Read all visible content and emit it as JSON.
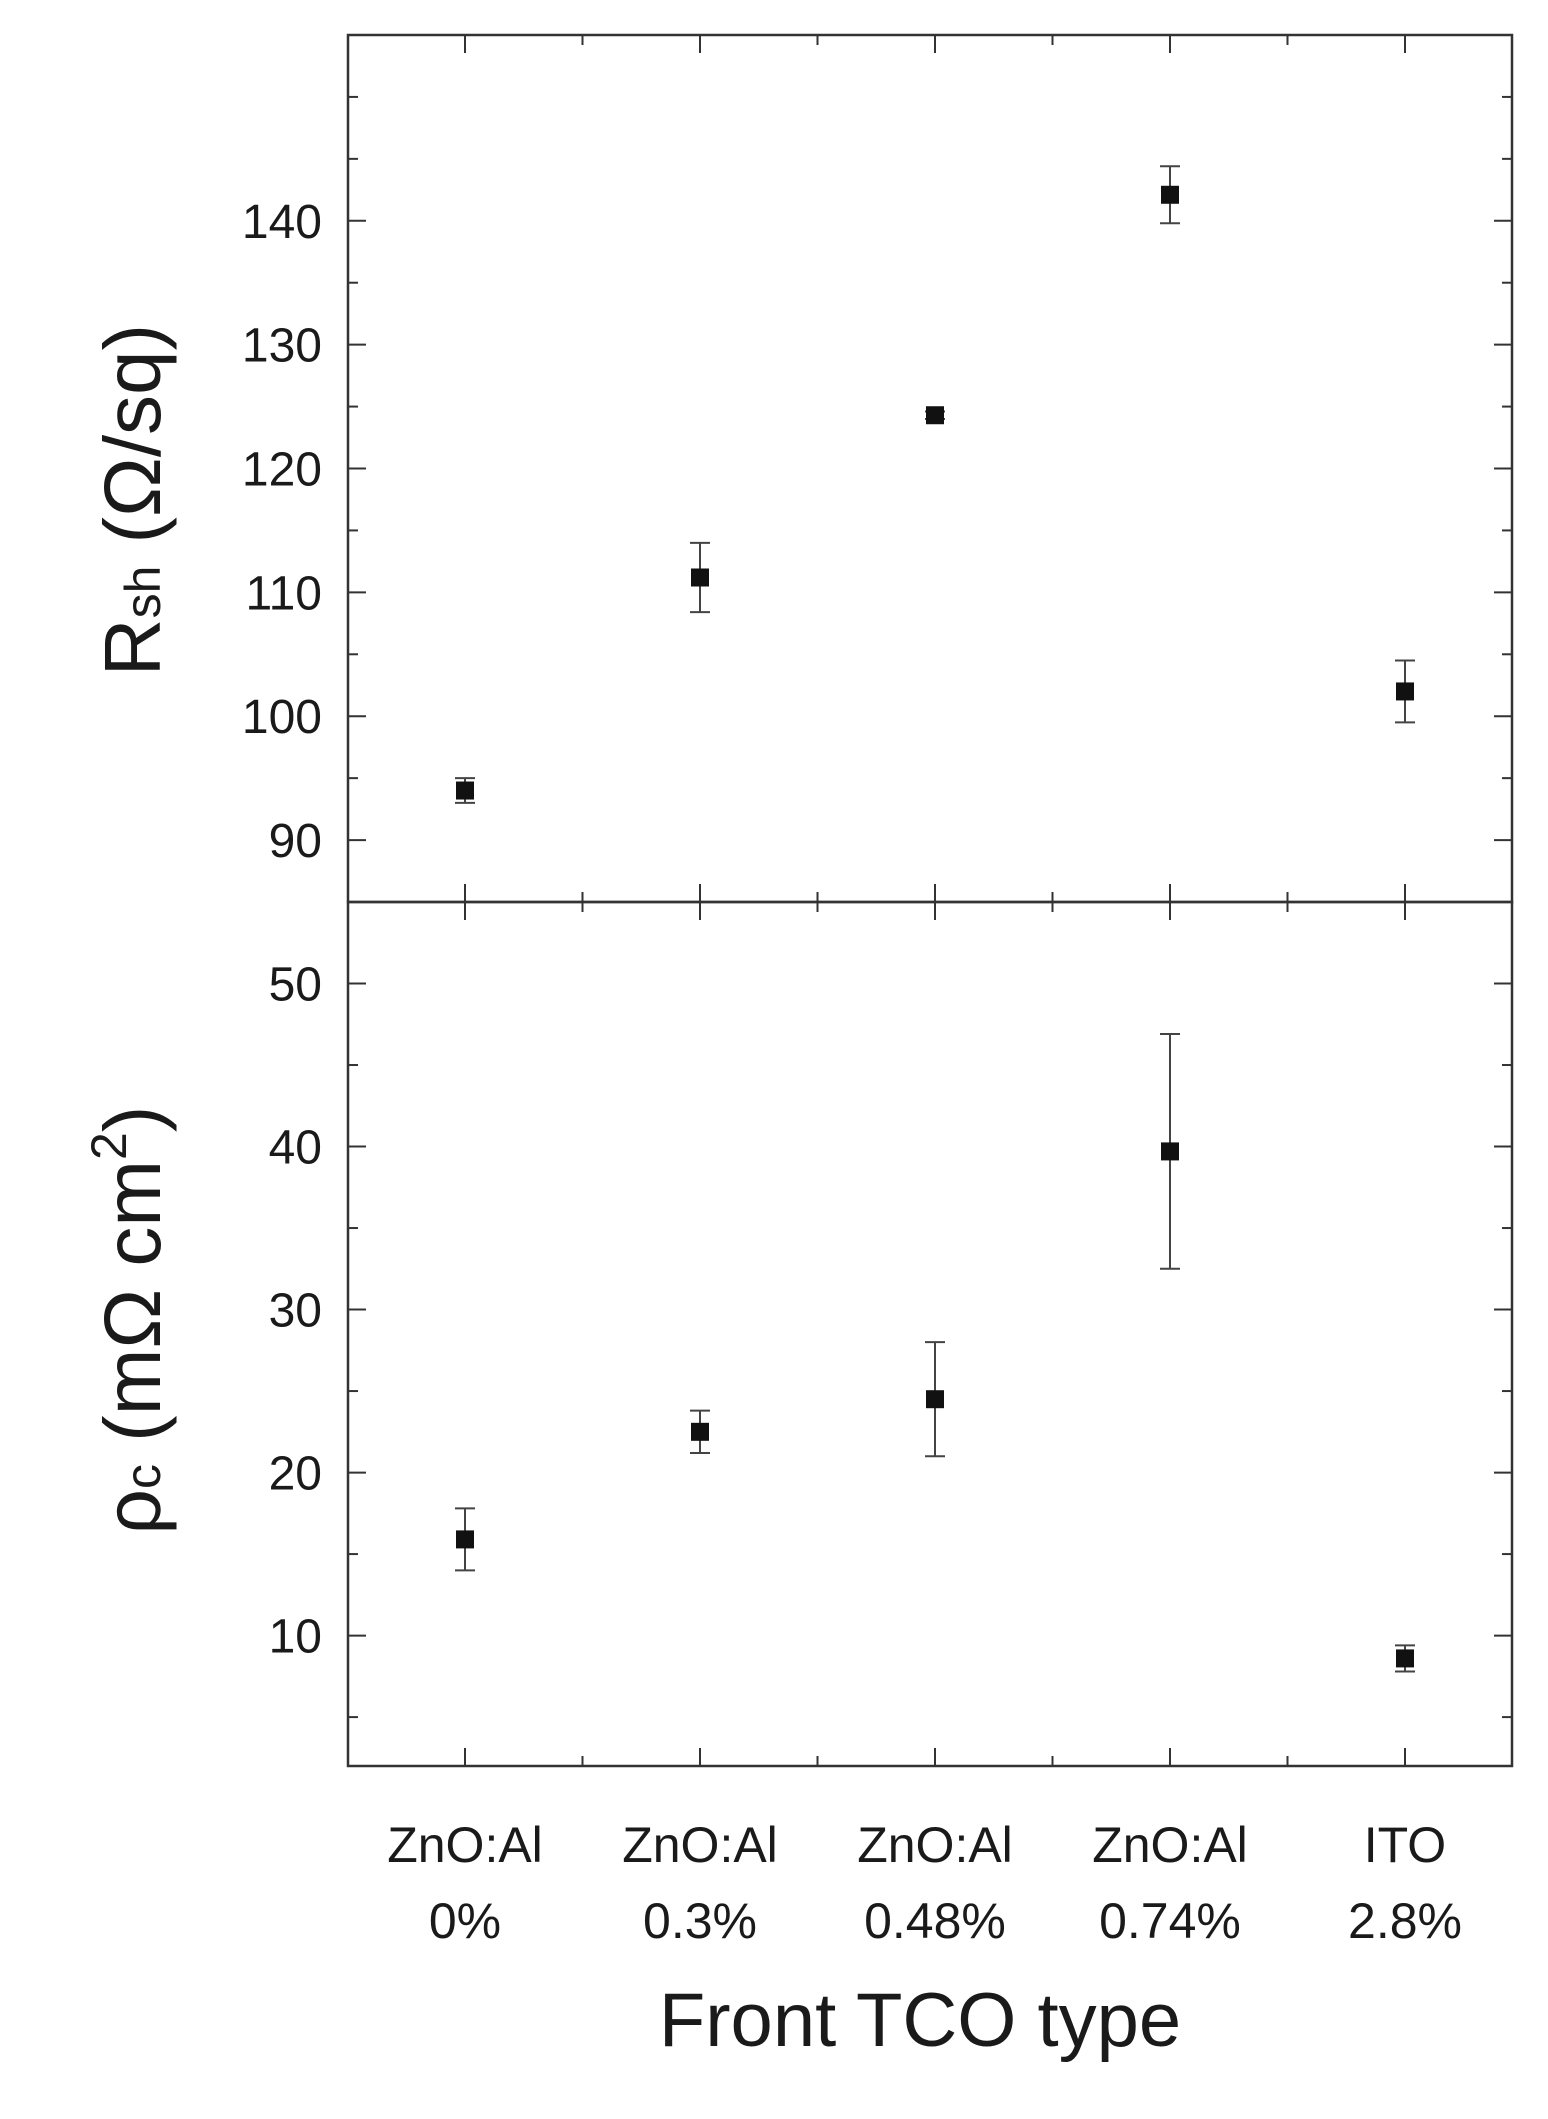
{
  "chart_data": [
    {
      "type": "scatter",
      "panel": "top",
      "ylabel": {
        "symbol": "R",
        "subscript": "sh",
        "unit": "(Ω/sq)"
      },
      "ylim": [
        85,
        155
      ],
      "yticks": [
        90,
        100,
        110,
        120,
        130,
        140
      ],
      "error_bars": true,
      "grid": false,
      "legend": "none",
      "categories": [
        "ZnO:Al 0%",
        "ZnO:Al 0.3%",
        "ZnO:Al 0.48%",
        "ZnO:Al 0.74%",
        "ITO 2.8%"
      ],
      "values": [
        94,
        111.2,
        124.3,
        142.1,
        102
      ],
      "errors": [
        1,
        2.8,
        0.3,
        2.3,
        2.5
      ]
    },
    {
      "type": "scatter",
      "panel": "bottom",
      "ylabel": {
        "symbol": "ρ",
        "subscript": "c",
        "unit": "(mΩ cm",
        "superscript": "2",
        "close": ")"
      },
      "ylim": [
        2,
        55
      ],
      "yticks": [
        10,
        20,
        30,
        40,
        50
      ],
      "error_bars": true,
      "grid": false,
      "legend": "none",
      "categories": [
        "ZnO:Al 0%",
        "ZnO:Al 0.3%",
        "ZnO:Al 0.48%",
        "ZnO:Al 0.74%",
        "ITO 2.8%"
      ],
      "values": [
        15.9,
        22.5,
        24.5,
        39.7,
        8.6
      ],
      "errors": [
        1.9,
        1.3,
        3.5,
        7.2,
        0.8
      ]
    }
  ],
  "xaxis": {
    "title": "Front TCO type",
    "categories": [
      {
        "line1": "ZnO:Al",
        "line2": "0%"
      },
      {
        "line1": "ZnO:Al",
        "line2": "0.3%"
      },
      {
        "line1": "ZnO:Al",
        "line2": "0.48%"
      },
      {
        "line1": "ZnO:Al",
        "line2": "0.74%"
      },
      {
        "line1": "ITO",
        "line2": "2.8%"
      }
    ]
  }
}
